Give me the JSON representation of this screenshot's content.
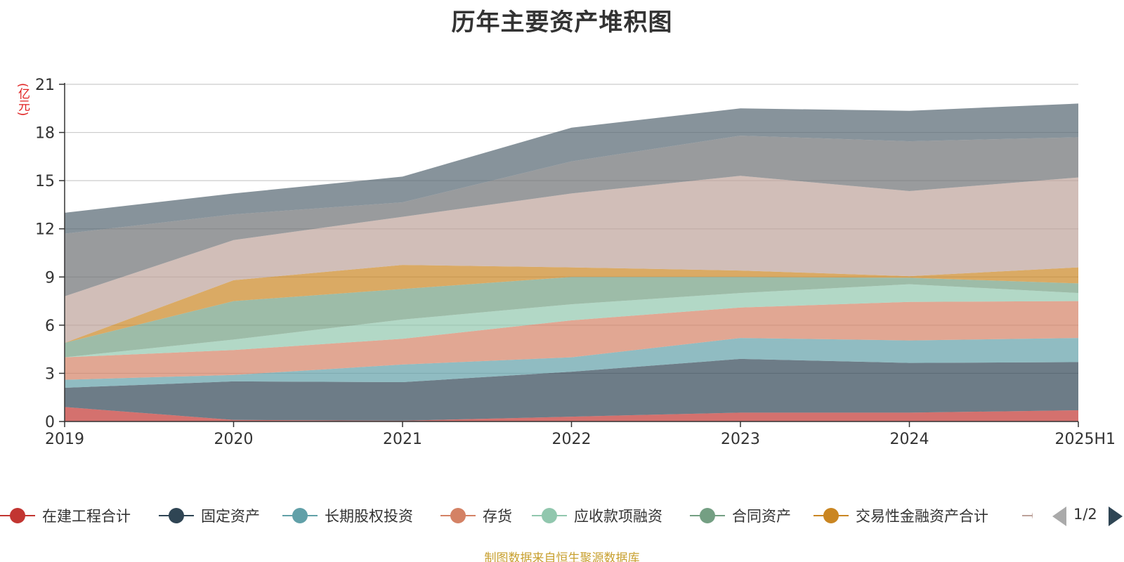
{
  "chart_data": {
    "type": "area",
    "stacked": true,
    "title": "历年主要资产堆积图",
    "ylabel": "(亿元)",
    "xlabel": "",
    "x": [
      "2019",
      "2020",
      "2021",
      "2022",
      "2023",
      "2024",
      "2025H1"
    ],
    "ylim": [
      0,
      21
    ],
    "yticks": [
      "0",
      "3",
      "6",
      "9",
      "12",
      "15",
      "18",
      "21"
    ],
    "grid": true,
    "legend_position": "bottom",
    "series": [
      {
        "name": "在建工程合计",
        "color": "#c23531",
        "values": [
          0.9,
          0.1,
          0.05,
          0.3,
          0.55,
          0.55,
          0.7
        ]
      },
      {
        "name": "固定资产",
        "color": "#2f4554",
        "values": [
          1.2,
          2.4,
          2.4,
          2.8,
          3.35,
          3.1,
          3.0
        ]
      },
      {
        "name": "长期股权投资",
        "color": "#61a0a8",
        "values": [
          0.5,
          0.4,
          1.1,
          0.9,
          1.3,
          1.4,
          1.5
        ]
      },
      {
        "name": "存货",
        "color": "#d48265",
        "values": [
          1.4,
          1.55,
          1.6,
          2.3,
          1.9,
          2.4,
          2.3
        ]
      },
      {
        "name": "应收款项融资",
        "color": "#91c7ae",
        "values": [
          0.0,
          0.65,
          1.2,
          1.0,
          0.9,
          1.1,
          0.5
        ]
      },
      {
        "name": "合同资产",
        "color": "#749f83",
        "values": [
          0.9,
          2.4,
          1.9,
          1.7,
          1.0,
          0.4,
          0.6
        ]
      },
      {
        "name": "交易性金融资产合计",
        "color": "#ca8622",
        "values": [
          0.0,
          1.3,
          1.5,
          0.6,
          0.4,
          0.1,
          1.0
        ]
      },
      {
        "name": "",
        "color": "#bda29a",
        "values": [
          2.9,
          2.5,
          3.0,
          4.6,
          5.9,
          5.3,
          5.6
        ]
      },
      {
        "name": "",
        "color": "#6e7074",
        "values": [
          3.9,
          1.6,
          0.9,
          2.0,
          2.5,
          3.1,
          2.5
        ]
      },
      {
        "name": "",
        "color": "#546570",
        "values": [
          1.3,
          1.3,
          1.6,
          2.1,
          1.7,
          1.9,
          2.1
        ]
      }
    ]
  },
  "legend": {
    "page_indicator": "1/2"
  },
  "footer": {
    "source_note": "制图数据来自恒生聚源数据库"
  }
}
